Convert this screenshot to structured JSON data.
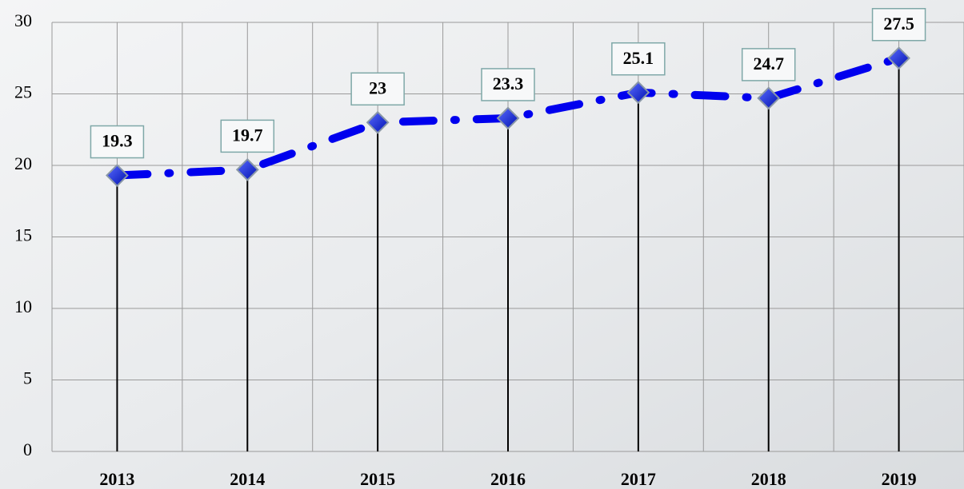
{
  "chart_data": {
    "type": "line",
    "categories": [
      "2013",
      "2014",
      "2015",
      "2016",
      "2017",
      "2018",
      "2019"
    ],
    "values": [
      19.3,
      19.7,
      23,
      23.3,
      25.1,
      24.7,
      27.5
    ],
    "color": "#0000ee",
    "ylim": [
      0,
      30
    ],
    "yticks": [
      0,
      5,
      10,
      15,
      20,
      25,
      30
    ],
    "grid": true
  }
}
